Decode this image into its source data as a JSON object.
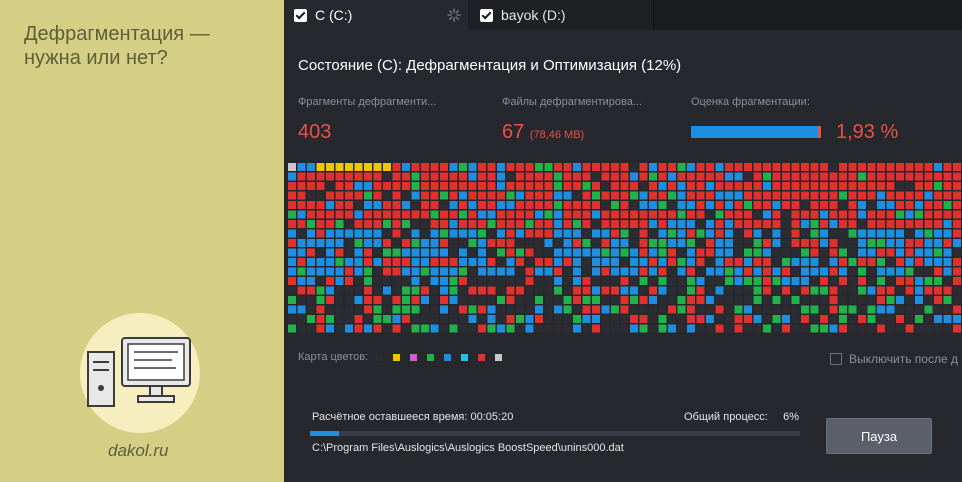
{
  "promo": {
    "title": "Дефрагментация — нужна или нет?",
    "site": "dakol.ru"
  },
  "tabs": [
    {
      "label": "C (C:)",
      "checked": true,
      "active": true
    },
    {
      "label": "bayok (D:)",
      "checked": true,
      "active": false
    }
  ],
  "status": {
    "title": "Состояние (C): Дефрагментация и Оптимизация (12%)"
  },
  "stats": {
    "fragments_label": "Фрагменты дефрагменти...",
    "fragments_value": "403",
    "files_label": "Файлы дефрагментирова...",
    "files_value": "67",
    "files_size": "(78,46 MB)",
    "rating_label": "Оценка фрагментации:",
    "rating_value": "1,93 %",
    "rating_fraction": 0.0193
  },
  "legend": {
    "label": "Карта цветов:",
    "colors": [
      "#2b2d33",
      "#f5c400",
      "#d05fd0",
      "#22b24c",
      "#1e8fe0",
      "#27c1e8",
      "#e0312e",
      "#c8c8c8"
    ]
  },
  "shutdown": {
    "label": "Выключить после д",
    "checked": false
  },
  "progress": {
    "remaining_label": "Расчётное оставшееся время:",
    "remaining_value": "00:05:20",
    "overall_label": "Общий процесс:",
    "overall_value": "6%",
    "fraction": 0.06,
    "current_file": "C:\\Program Files\\Auslogics\\Auslogics BoostSpeed\\unins000.dat"
  },
  "pause_label": "Пауза",
  "map_colors": {
    "empty": "#2b2d33",
    "red": "#e0312e",
    "blue": "#1e8fe0",
    "green": "#22b24c",
    "yellow": "#f5c400",
    "gray": "#c8c8c8"
  }
}
